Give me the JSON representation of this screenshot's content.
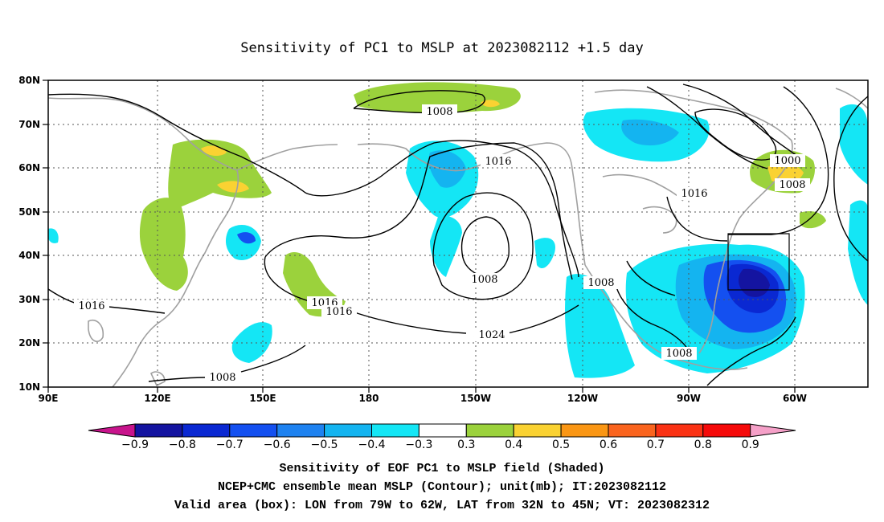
{
  "title": "Sensitivity of PC1 to MSLP at 2023082112 +1.5 day",
  "map": {
    "lon_labels": [
      "90E",
      "120E",
      "150E",
      "180",
      "150W",
      "120W",
      "90W",
      "60W"
    ],
    "lat_labels": [
      "80N",
      "70N",
      "60N",
      "50N",
      "40N",
      "30N",
      "20N",
      "10N"
    ],
    "contour_labels": [
      "1008",
      "1016",
      "1000",
      "1008",
      "1016",
      "1016",
      "1016",
      "1024",
      "1008",
      "1008",
      "1016",
      "1008",
      "1008"
    ],
    "valid_box": {
      "lon_from": "79W",
      "lon_to": "62W",
      "lat_from": "32N",
      "lat_to": "45N"
    }
  },
  "colorbar": {
    "labels": [
      "−0.9",
      "−0.8",
      "−0.7",
      "−0.6",
      "−0.5",
      "−0.4",
      "−0.3",
      "0.3",
      "0.4",
      "0.5",
      "0.6",
      "0.7",
      "0.8",
      "0.9"
    ],
    "colors": [
      "#1414a0",
      "#0a28d2",
      "#1450f0",
      "#1e82f0",
      "#14b4f0",
      "#14e6f5",
      "#ffffff",
      "#9bd23c",
      "#fad232",
      "#fa9614",
      "#fa641e",
      "#fa3214",
      "#f50a0a"
    ],
    "under_color": "#c8148c",
    "over_color": "#f5a0c8"
  },
  "footer": {
    "line1": "Sensitivity of EOF PC1 to MSLP field (Shaded)",
    "line2": "NCEP+CMC ensemble mean MSLP (Contour); unit(mb); IT:2023082112",
    "line3": "Valid area (box): LON from 79W to 62W, LAT from 32N to 45N; VT: 2023082312"
  }
}
